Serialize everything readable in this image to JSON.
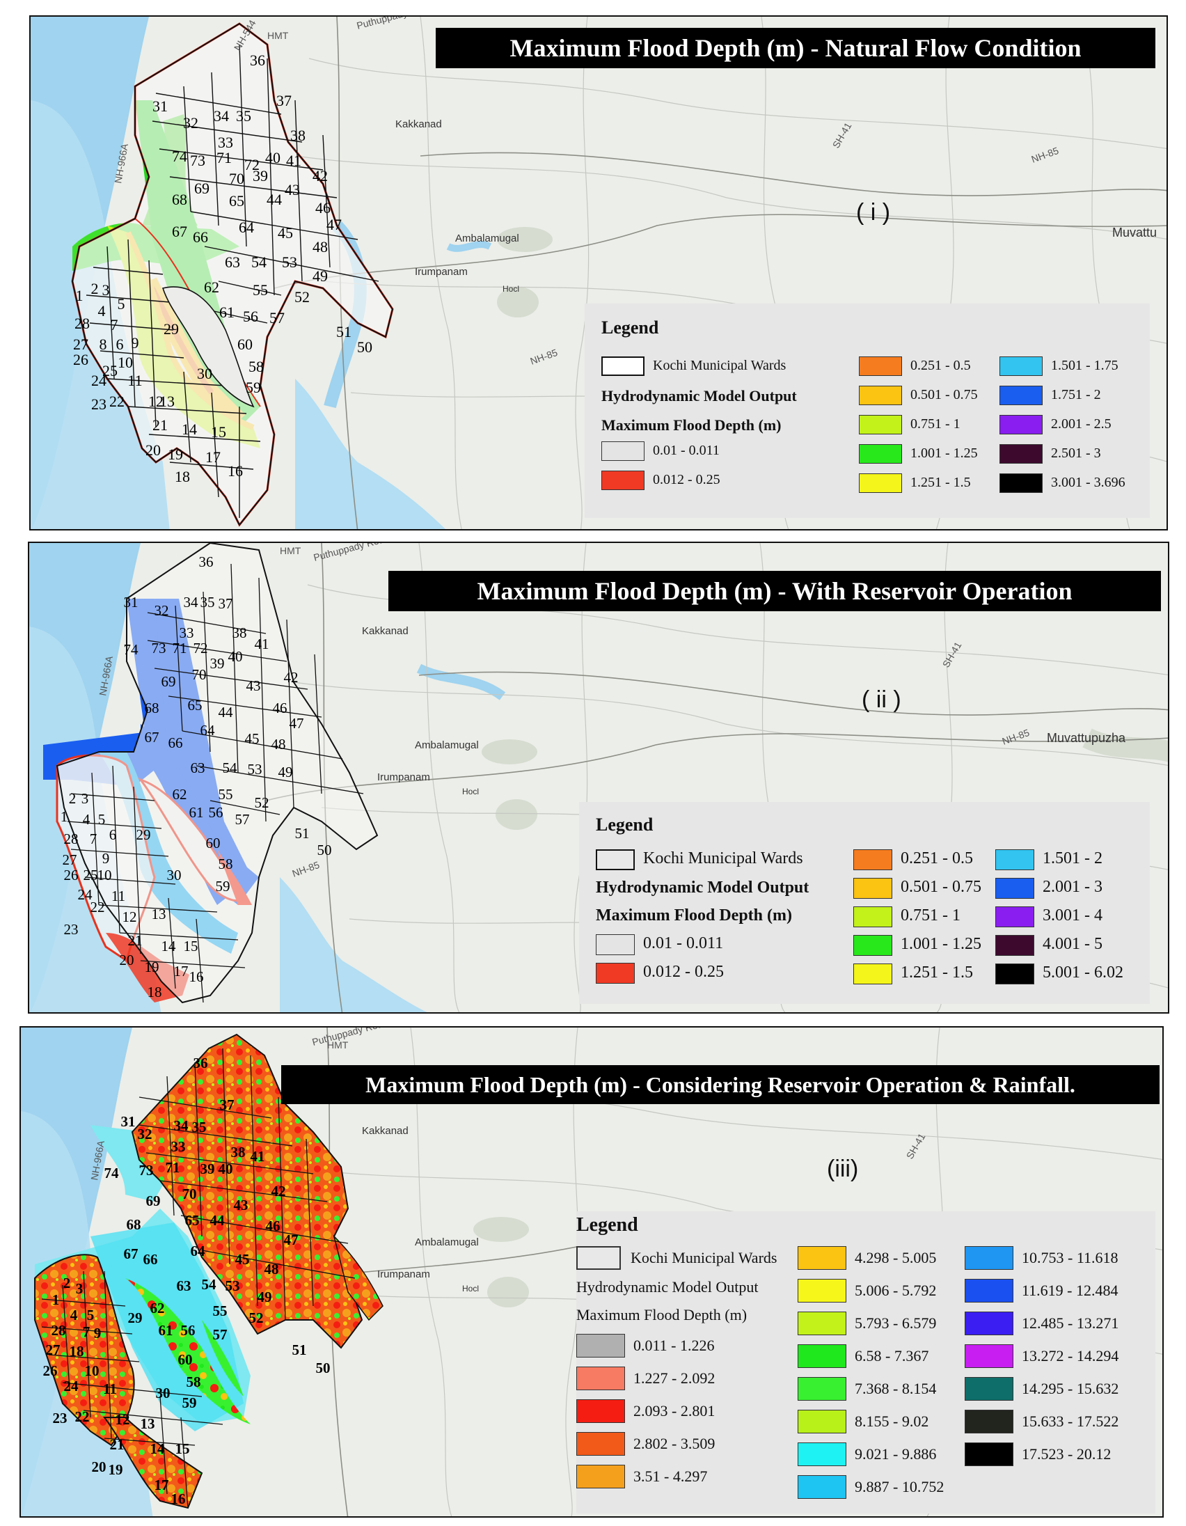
{
  "panels": [
    {
      "id": "i",
      "title": "Maximum Flood Depth (m) - Natural Flow Condition",
      "label": "( i )",
      "places": [
        "Kakkanad",
        "Ambalamugal",
        "Irumpanam",
        "Hocl",
        "Muvattu",
        "HMT"
      ],
      "legend": {
        "title": "Legend",
        "wards_label": "Kochi Municipal Wards",
        "model_label": "Hydrodynamic Model Output",
        "depth_label": "Maximum Flood Depth (m)",
        "classes": [
          {
            "label": "0.01 - 0.011",
            "color": "#e4e4e4"
          },
          {
            "label": "0.012 - 0.25",
            "color": "#f03a24"
          },
          {
            "label": "0.251 - 0.5",
            "color": "#f57c1f"
          },
          {
            "label": "0.501 - 0.75",
            "color": "#fbc312"
          },
          {
            "label": "0.751 - 1",
            "color": "#c2f21a"
          },
          {
            "label": "1.001 - 1.25",
            "color": "#28e81c"
          },
          {
            "label": "1.251 - 1.5",
            "color": "#f4f51a"
          },
          {
            "label": "1.501 - 1.75",
            "color": "#33c4f0"
          },
          {
            "label": "1.751 - 2",
            "color": "#1a5ef0"
          },
          {
            "label": "2.001 - 2.5",
            "color": "#8a1ef0"
          },
          {
            "label": "2.501 - 3",
            "color": "#3d0a2e"
          },
          {
            "label": "3.001 - 3.696",
            "color": "#000000"
          }
        ]
      }
    },
    {
      "id": "ii",
      "title": "Maximum Flood Depth (m) - With Reservoir Operation",
      "label": "( ii )",
      "places": [
        "Kakkanad",
        "Ambalamugal",
        "Irumpanam",
        "Hocl",
        "Muvattupuzha",
        "HMT"
      ],
      "legend": {
        "title": "Legend",
        "wards_label": "Kochi Municipal Wards",
        "model_label": "Hydrodynamic Model Output",
        "depth_label": "Maximum Flood Depth (m)",
        "classes": [
          {
            "label": "0.01 - 0.011",
            "color": "#e4e4e4"
          },
          {
            "label": "0.012 - 0.25",
            "color": "#f03a24"
          },
          {
            "label": "0.251 - 0.5",
            "color": "#f57c1f"
          },
          {
            "label": "0.501 - 0.75",
            "color": "#fbc312"
          },
          {
            "label": "0.751 - 1",
            "color": "#c2f21a"
          },
          {
            "label": "1.001 - 1.25",
            "color": "#28e81c"
          },
          {
            "label": "1.251 - 1.5",
            "color": "#f4f51a"
          },
          {
            "label": "1.501 - 2",
            "color": "#33c4f0"
          },
          {
            "label": "2.001 - 3",
            "color": "#1a5ef0"
          },
          {
            "label": "3.001 - 4",
            "color": "#8a1ef0"
          },
          {
            "label": "4.001 - 5",
            "color": "#3d0a2e"
          },
          {
            "label": "5.001 - 6.02",
            "color": "#000000"
          }
        ]
      }
    },
    {
      "id": "iii",
      "title": "Maximum Flood Depth (m) - Considering Reservoir Operation &  Rainfall.",
      "label": "(iii)",
      "places": [
        "Kakkanad",
        "Ambalamugal",
        "Irumpanam",
        "Hocl",
        "HMT"
      ],
      "legend": {
        "title": "Legend",
        "wards_label": "Kochi Municipal Wards",
        "model_label": "Hydrodynamic Model Output",
        "depth_label": "Maximum Flood Depth (m)",
        "classes": [
          {
            "label": "0.011 - 1.226",
            "color": "#b0b0b0"
          },
          {
            "label": "1.227 - 2.092",
            "color": "#f77a62"
          },
          {
            "label": "2.093 - 2.801",
            "color": "#f51d12"
          },
          {
            "label": "2.802 - 3.509",
            "color": "#f25a1a"
          },
          {
            "label": "3.51 - 4.297",
            "color": "#f5a01c"
          },
          {
            "label": "4.298 - 5.005",
            "color": "#fbc312"
          },
          {
            "label": "5.006 - 5.792",
            "color": "#f6f61a"
          },
          {
            "label": "5.793 - 6.579",
            "color": "#c2f21a"
          },
          {
            "label": "6.58 - 7.367",
            "color": "#1fe81c"
          },
          {
            "label": "7.368 - 8.154",
            "color": "#38f030"
          },
          {
            "label": "8.155 - 9.02",
            "color": "#b8f01a"
          },
          {
            "label": "9.021 - 9.886",
            "color": "#1ef2f2"
          },
          {
            "label": "9.887 - 10.752",
            "color": "#1ec4f2"
          },
          {
            "label": "10.753 - 11.618",
            "color": "#1e96f2"
          },
          {
            "label": "11.619 - 12.484",
            "color": "#1a50f0"
          },
          {
            "label": "12.485 - 13.271",
            "color": "#3a1ef2"
          },
          {
            "label": "13.272 - 14.294",
            "color": "#c81ef2"
          },
          {
            "label": "14.295 - 15.632",
            "color": "#0e6e6a"
          },
          {
            "label": "15.633 - 17.522",
            "color": "#22241e"
          },
          {
            "label": "17.523 - 20.12",
            "color": "#000000"
          }
        ]
      }
    }
  ],
  "wards": [
    "1",
    "2",
    "3",
    "4",
    "5",
    "6",
    "7",
    "8",
    "9",
    "10",
    "11",
    "12",
    "13",
    "14",
    "15",
    "16",
    "17",
    "18",
    "19",
    "20",
    "21",
    "22",
    "23",
    "24",
    "25",
    "26",
    "27",
    "28",
    "29",
    "30",
    "31",
    "32",
    "33",
    "34",
    "35",
    "36",
    "37",
    "38",
    "39",
    "40",
    "41",
    "42",
    "43",
    "44",
    "45",
    "46",
    "47",
    "48",
    "49",
    "50",
    "51",
    "52",
    "53",
    "54",
    "55",
    "56",
    "57",
    "58",
    "59",
    "60",
    "61",
    "62",
    "63",
    "64",
    "65",
    "66",
    "67",
    "68",
    "69",
    "70",
    "71",
    "72",
    "73",
    "74"
  ]
}
